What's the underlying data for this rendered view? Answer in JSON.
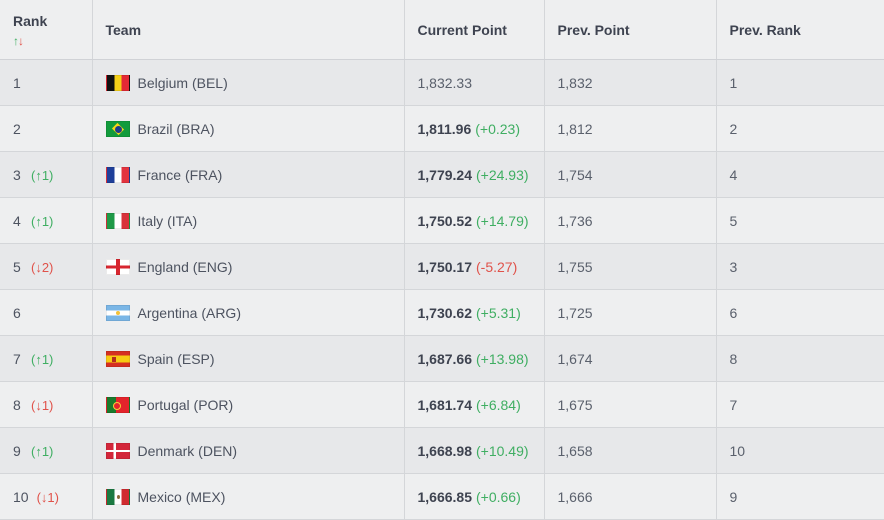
{
  "headers": {
    "rank": "Rank",
    "rank_sort_up": "↑",
    "rank_sort_down": "↓",
    "team": "Team",
    "current_point": "Current Point",
    "prev_point": "Prev. Point",
    "prev_rank": "Prev. Rank"
  },
  "rows": [
    {
      "rank": "1",
      "movement": "",
      "movement_dir": "none",
      "team": "Belgium (BEL)",
      "flag_icon": "flag-bel",
      "current": "1,832.33",
      "current_bold": false,
      "delta": "",
      "delta_dir": "none",
      "prev_point": "1,832",
      "prev_rank": "1"
    },
    {
      "rank": "2",
      "movement": "",
      "movement_dir": "none",
      "team": "Brazil (BRA)",
      "flag_icon": "flag-bra",
      "current": "1,811.96",
      "current_bold": true,
      "delta": "(+0.23)",
      "delta_dir": "pos",
      "prev_point": "1,812",
      "prev_rank": "2"
    },
    {
      "rank": "3",
      "movement": "(↑1)",
      "movement_dir": "up",
      "team": "France (FRA)",
      "flag_icon": "flag-fra",
      "current": "1,779.24",
      "current_bold": true,
      "delta": "(+24.93)",
      "delta_dir": "pos",
      "prev_point": "1,754",
      "prev_rank": "4"
    },
    {
      "rank": "4",
      "movement": "(↑1)",
      "movement_dir": "up",
      "team": "Italy (ITA)",
      "flag_icon": "flag-ita",
      "current": "1,750.52",
      "current_bold": true,
      "delta": "(+14.79)",
      "delta_dir": "pos",
      "prev_point": "1,736",
      "prev_rank": "5"
    },
    {
      "rank": "5",
      "movement": "(↓2)",
      "movement_dir": "down",
      "team": "England (ENG)",
      "flag_icon": "flag-eng",
      "current": "1,750.17",
      "current_bold": true,
      "delta": "(-5.27)",
      "delta_dir": "neg",
      "prev_point": "1,755",
      "prev_rank": "3"
    },
    {
      "rank": "6",
      "movement": "",
      "movement_dir": "none",
      "team": "Argentina (ARG)",
      "flag_icon": "flag-arg",
      "current": "1,730.62",
      "current_bold": true,
      "delta": "(+5.31)",
      "delta_dir": "pos",
      "prev_point": "1,725",
      "prev_rank": "6"
    },
    {
      "rank": "7",
      "movement": "(↑1)",
      "movement_dir": "up",
      "team": "Spain (ESP)",
      "flag_icon": "flag-esp",
      "current": "1,687.66",
      "current_bold": true,
      "delta": "(+13.98)",
      "delta_dir": "pos",
      "prev_point": "1,674",
      "prev_rank": "8"
    },
    {
      "rank": "8",
      "movement": "(↓1)",
      "movement_dir": "down",
      "team": "Portugal (POR)",
      "flag_icon": "flag-por",
      "current": "1,681.74",
      "current_bold": true,
      "delta": "(+6.84)",
      "delta_dir": "pos",
      "prev_point": "1,675",
      "prev_rank": "7"
    },
    {
      "rank": "9",
      "movement": "(↑1)",
      "movement_dir": "up",
      "team": "Denmark (DEN)",
      "flag_icon": "flag-den",
      "current": "1,668.98",
      "current_bold": true,
      "delta": "(+10.49)",
      "delta_dir": "pos",
      "prev_point": "1,658",
      "prev_rank": "10"
    },
    {
      "rank": "10",
      "movement": "(↓1)",
      "movement_dir": "down",
      "team": "Mexico (MEX)",
      "flag_icon": "flag-mex",
      "current": "1,666.85",
      "current_bold": true,
      "delta": "(+0.66)",
      "delta_dir": "pos",
      "prev_point": "1,666",
      "prev_rank": "9"
    }
  ],
  "colors": {
    "up": "#3fae62",
    "down": "#e0524a",
    "row_odd": "#e7e8ea",
    "row_even": "#eeeff0",
    "text": "#4d5360"
  }
}
